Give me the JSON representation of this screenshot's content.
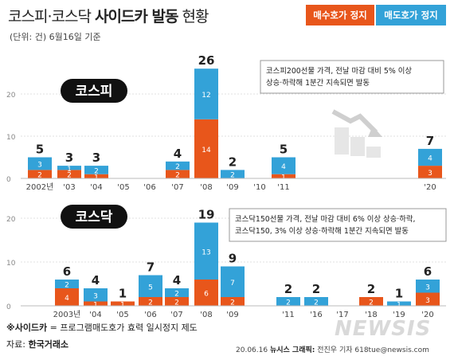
{
  "header": {
    "title_light": "코스피·코스닥",
    "title_bold": "사이드카 발동",
    "title_tail": "현황",
    "subtitle": "(단위: 건) 6월16일 기준"
  },
  "legend": {
    "buy_label": "매수호가 정지",
    "sell_label": "매도호가 정지"
  },
  "colors": {
    "buy": "#e8561b",
    "sell": "#33a2d8"
  },
  "footer": {
    "note_bold": "※사이드카",
    "note_text": " = 프로그램매도호가 효력 일시정지 제도",
    "source_label": "자료: ",
    "source_bold": "한국거래소",
    "credit_date": "20.06.16",
    "credit_agency": "뉴시스 그래픽:",
    "credit_person": "전진우 기자 618tue@newsis.com",
    "watermark": "NEWSIS"
  },
  "chart_data": [
    {
      "type": "bar",
      "stacked": true,
      "market_label": "코스피",
      "annotation": [
        "코스피200선물 가격, 전날 마감 대비 5% 이상",
        "상승·하락해 1분간 지속되면 발동"
      ],
      "categories": [
        "2002년",
        "'03",
        "'04",
        "'05",
        "'06",
        "'07",
        "'08",
        "'09",
        "'10",
        "'11",
        "'20"
      ],
      "series": [
        {
          "name": "매수호가 정지",
          "values": [
            2,
            2,
            1,
            0,
            0,
            2,
            14,
            0,
            0,
            1,
            3
          ]
        },
        {
          "name": "매도호가 정지",
          "values": [
            3,
            1,
            2,
            0,
            0,
            2,
            12,
            2,
            0,
            4,
            4
          ]
        }
      ],
      "totals": [
        5,
        3,
        3,
        null,
        null,
        4,
        26,
        2,
        null,
        5,
        7
      ],
      "y_ticks": [
        0,
        10,
        20
      ],
      "ylim": [
        0,
        26
      ]
    },
    {
      "type": "bar",
      "stacked": true,
      "market_label": "코스닥",
      "annotation": [
        "코스닥150선물 가격, 전날 마감 대비 6% 이상 상승·하락,",
        "코스닥150, 3% 이상 상승·하락해 1분간 지속되면 발동"
      ],
      "categories": [
        "2003년",
        "'04",
        "'05",
        "'06",
        "'07",
        "'08",
        "'09",
        "'11",
        "'16",
        "'17",
        "'18",
        "'19",
        "'20"
      ],
      "series": [
        {
          "name": "매수호가 정지",
          "values": [
            4,
            1,
            1,
            2,
            2,
            6,
            2,
            0,
            0,
            0,
            2,
            0,
            3
          ]
        },
        {
          "name": "매도호가 정지",
          "values": [
            2,
            3,
            0,
            5,
            2,
            13,
            7,
            2,
            2,
            0,
            0,
            1,
            3
          ]
        }
      ],
      "totals": [
        6,
        4,
        1,
        7,
        4,
        19,
        9,
        2,
        2,
        null,
        2,
        1,
        6
      ],
      "y_ticks": [
        0,
        10,
        20
      ],
      "ylim": [
        0,
        20
      ]
    }
  ]
}
